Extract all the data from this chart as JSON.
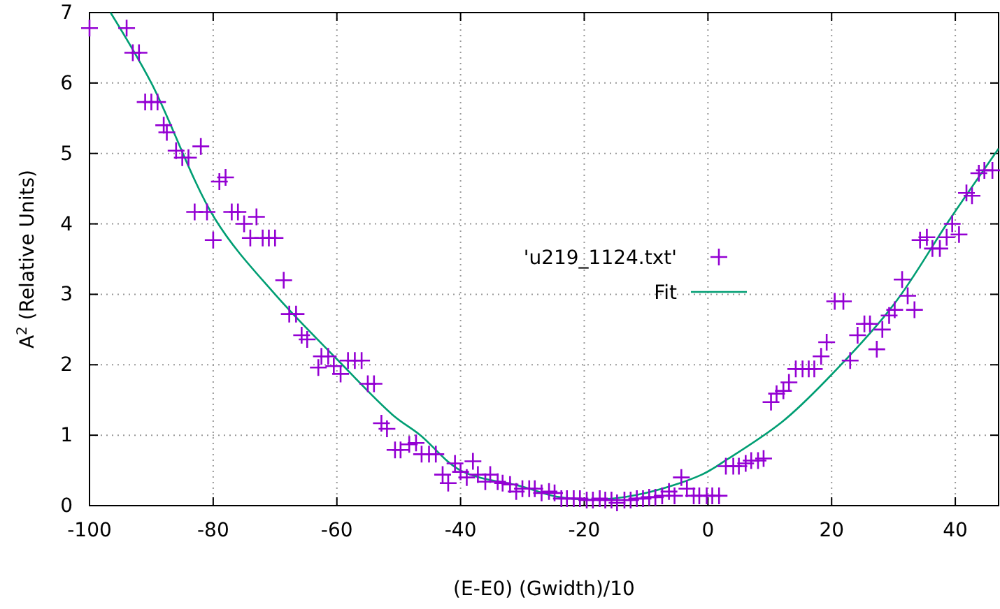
{
  "chart_data": {
    "type": "scatter",
    "xlabel": "(E-E0) (Gwidth)/10",
    "ylabel": "A$^{2}$ (Relative Units)",
    "xlim": [
      -100,
      47
    ],
    "ylim": [
      0,
      7
    ],
    "xticks": [
      -100,
      -80,
      -60,
      -40,
      -20,
      0,
      20,
      40
    ],
    "yticks": [
      0,
      1,
      2,
      3,
      4,
      5,
      6,
      7
    ],
    "grid": true,
    "legend": "center",
    "marker": "cross",
    "series": [
      {
        "name": "'u219_1124.txt'",
        "color": "#9400d3",
        "x": [
          -100,
          -94,
          -93,
          -92,
          -91,
          -90,
          -89,
          -88,
          -87.5,
          -86,
          -85,
          -84,
          -83,
          -82,
          -81,
          -80,
          -79,
          -78,
          -77,
          -76,
          -75,
          -74,
          -73,
          -72,
          -71,
          -70,
          -68.6,
          -67.7,
          -66.6,
          -65.7,
          -64.8,
          -63,
          -62.5,
          -61.4,
          -60.5,
          -59.4,
          -58.2,
          -57.1,
          -56,
          -55,
          -54,
          -52.8,
          -51.9,
          -50.6,
          -49.7,
          -48.3,
          -47.2,
          -46.3,
          -45.1,
          -44,
          -42.9,
          -42,
          -40.9,
          -40,
          -39,
          -38,
          -37.2,
          -36,
          -35.2,
          -34,
          -33.2,
          -32,
          -31,
          -30,
          -28.9,
          -28,
          -26.9,
          -25.7,
          -24.8,
          -23.7,
          -22.8,
          -21.7,
          -20.7,
          -19.6,
          -18.6,
          -17.5,
          -16.6,
          -15.6,
          -14.7,
          -13.5,
          -12.5,
          -11.5,
          -10.5,
          -9.5,
          -8.5,
          -7.4,
          -6.3,
          -5.4,
          -4.3,
          -3.4,
          -2.3,
          -1.4,
          -0.2,
          0.7,
          1.8,
          2.9,
          4.1,
          5,
          6.1,
          7,
          8.1,
          9,
          10.2,
          11.1,
          12.2,
          13.1,
          14.2,
          15.3,
          16.3,
          17.2,
          18.3,
          19.2,
          20.5,
          21.9,
          23,
          24.2,
          25.3,
          26.2,
          27.3,
          28.2,
          29.3,
          30.2,
          31.4,
          32.3,
          33.4,
          34.3,
          35.4,
          36.3,
          37.5,
          38.6,
          39.5,
          40.6,
          41.8,
          42.7,
          43.8,
          44.7,
          46
        ],
        "values": [
          6.78,
          6.78,
          6.43,
          6.43,
          5.73,
          5.73,
          5.73,
          5.4,
          5.3,
          5.04,
          4.94,
          4.94,
          4.17,
          5.1,
          4.17,
          3.77,
          4.6,
          4.66,
          4.17,
          4.17,
          4.0,
          3.8,
          4.1,
          3.8,
          3.8,
          3.8,
          3.2,
          2.72,
          2.72,
          2.42,
          2.36,
          1.96,
          2.12,
          2.12,
          1.98,
          1.87,
          2.06,
          2.06,
          2.06,
          1.73,
          1.73,
          1.17,
          1.09,
          0.79,
          0.79,
          0.87,
          0.89,
          0.73,
          0.73,
          0.73,
          0.44,
          0.32,
          0.6,
          0.48,
          0.4,
          0.63,
          0.44,
          0.34,
          0.44,
          0.34,
          0.32,
          0.3,
          0.2,
          0.24,
          0.24,
          0.24,
          0.18,
          0.2,
          0.18,
          0.1,
          0.1,
          0.1,
          0.1,
          0.08,
          0.08,
          0.1,
          0.08,
          0.08,
          0.04,
          0.08,
          0.08,
          0.1,
          0.1,
          0.12,
          0.12,
          0.14,
          0.2,
          0.14,
          0.4,
          0.24,
          0.14,
          0.14,
          0.14,
          0.14,
          0.14,
          0.56,
          0.56,
          0.56,
          0.6,
          0.64,
          0.64,
          0.67,
          1.47,
          1.59,
          1.63,
          1.75,
          1.94,
          1.94,
          1.94,
          1.94,
          2.12,
          2.32,
          2.9,
          2.9,
          2.06,
          2.42,
          2.58,
          2.58,
          2.22,
          2.5,
          2.7,
          2.78,
          3.21,
          2.98,
          2.78,
          3.77,
          3.81,
          3.65,
          3.65,
          3.81,
          4.0,
          3.85,
          4.44,
          4.4,
          4.72,
          4.76,
          4.76
        ]
      },
      {
        "name": "Fit",
        "type": "line",
        "color": "#009e73",
        "marker": "none",
        "line_style": "solid",
        "x": [
          -96.6,
          -90,
          -79.7,
          -70,
          -60,
          -51,
          -46.5,
          -40,
          -30,
          -24,
          -17,
          -10,
          -1,
          3,
          12,
          19,
          30,
          39,
          47
        ],
        "values": [
          7.0,
          6.0,
          4.07,
          3.0,
          2.08,
          1.29,
          1.0,
          0.5,
          0.27,
          0.12,
          0.09,
          0.18,
          0.44,
          0.65,
          1.19,
          1.77,
          2.85,
          4.05,
          5.07
        ]
      }
    ]
  }
}
